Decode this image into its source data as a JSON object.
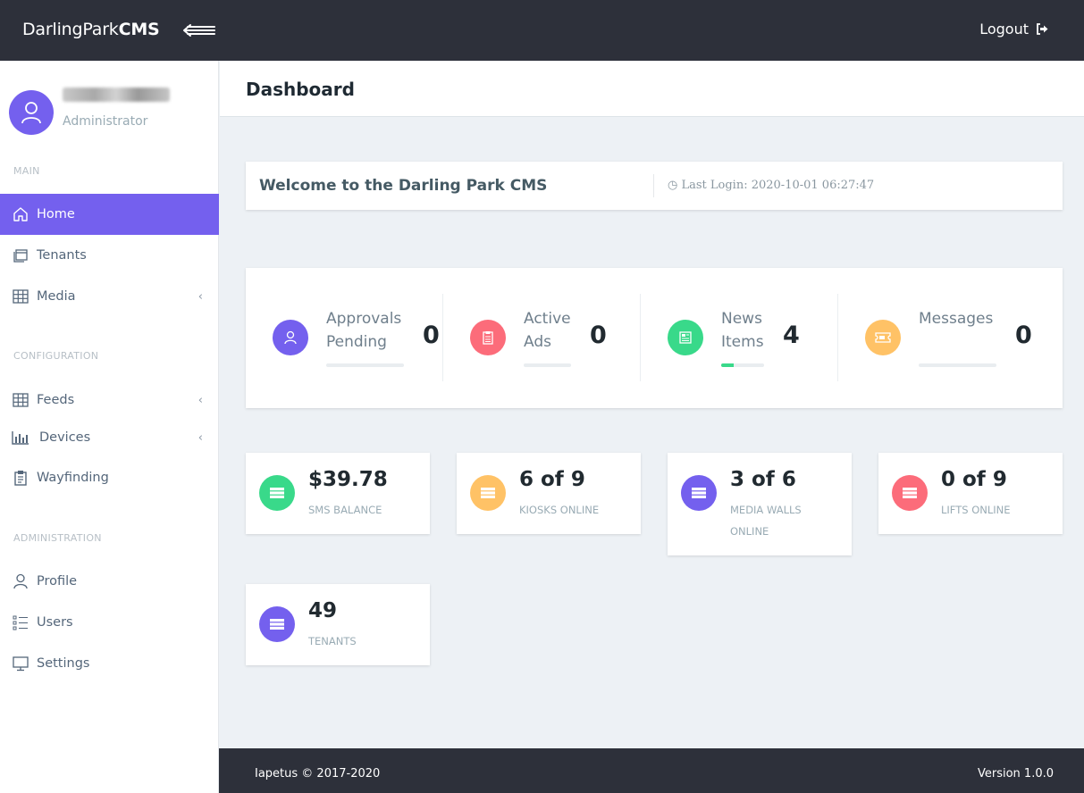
{
  "brand": {
    "name_regular": "DarlingPark",
    "name_bold": "CMS"
  },
  "topbar": {
    "logout_label": "Logout"
  },
  "user": {
    "role": "Administrator"
  },
  "sidebar": {
    "sections": {
      "main": "MAIN",
      "configuration": "CONFIGURATION",
      "administration": "ADMINISTRATION"
    },
    "items": [
      {
        "label": "Home",
        "icon": "home-icon",
        "active": true
      },
      {
        "label": "Tenants",
        "icon": "tenants-icon"
      },
      {
        "label": "Media",
        "icon": "grid-icon",
        "has_submenu": true
      },
      {
        "label": "Feeds",
        "icon": "grid-icon",
        "has_submenu": true
      },
      {
        "label": "Devices",
        "icon": "bar-chart-icon",
        "has_submenu": true
      },
      {
        "label": "Wayfinding",
        "icon": "clipboard-icon"
      },
      {
        "label": "Profile",
        "icon": "user-icon"
      },
      {
        "label": "Users",
        "icon": "list-icon"
      },
      {
        "label": "Settings",
        "icon": "monitor-icon"
      }
    ]
  },
  "page": {
    "title": "Dashboard"
  },
  "welcome": {
    "title": "Welcome to the Darling Park CMS",
    "last_login": "Last Login: 2020-10-01 06:27:47"
  },
  "stats": [
    {
      "label_line1": "Approvals",
      "label_line2": "Pending",
      "value": "0",
      "color": "#7460ee",
      "icon": "user-icon",
      "progress": 0
    },
    {
      "label_line1": "Active",
      "label_line2": "Ads",
      "value": "0",
      "color": "#fc4b6c",
      "icon": "clipboard-icon",
      "progress": 0
    },
    {
      "label_line1": "News",
      "label_line2": "Items",
      "value": "4",
      "color": "#26dad2",
      "icon": "news-icon",
      "progress": 0.3
    },
    {
      "label_line1": "Messages",
      "label_line2": "",
      "value": "0",
      "color": "#ffb22b",
      "icon": "ticket-icon",
      "progress": 0
    }
  ],
  "summary_cards": [
    {
      "value": "$39.78",
      "label": "SMS BALANCE",
      "color": "#39d98a",
      "icon": "server-icon"
    },
    {
      "value": "6 of 9",
      "label": "KIOSKS ONLINE",
      "color": "#ffc266",
      "icon": "server-icon"
    },
    {
      "value": "3 of 6",
      "label": "MEDIA WALLS ONLINE",
      "color": "#7460ee",
      "icon": "server-icon"
    },
    {
      "value": "0 of 9",
      "label": "LIFTS ONLINE",
      "color": "#fc6c7a",
      "icon": "server-icon"
    },
    {
      "value": "49",
      "label": "TENANTS",
      "color": "#7460ee",
      "icon": "server-icon"
    }
  ],
  "footer": {
    "copyright": "Iapetus © 2017-2020",
    "version": "Version 1.0.0"
  }
}
